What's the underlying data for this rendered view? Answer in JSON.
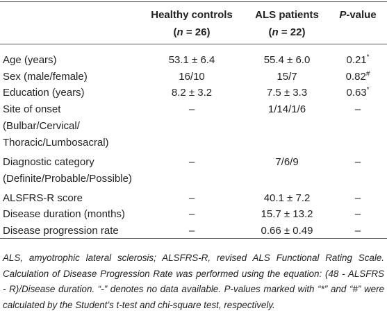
{
  "table": {
    "columns": [
      {
        "title": "Healthy controls",
        "sub": {
          "pre": "(",
          "var": "n",
          "post": " = 26)"
        }
      },
      {
        "title": "ALS patients",
        "sub": {
          "pre": "(",
          "var": "n",
          "post": " = 22)"
        }
      },
      {
        "title": {
          "var": "P",
          "post": "-value"
        }
      }
    ],
    "rows": [
      {
        "label": [
          "Age (years)"
        ],
        "cells": [
          {
            "text": "53.1 ± 6.4"
          },
          {
            "text": "55.4 ± 6.0"
          },
          {
            "text": "0.21",
            "sup": "*"
          }
        ]
      },
      {
        "label": [
          "Sex (male/female)"
        ],
        "cells": [
          {
            "text": "16/10"
          },
          {
            "text": "15/7"
          },
          {
            "text": "0.82",
            "sup": "#"
          }
        ]
      },
      {
        "label": [
          "Education (years)"
        ],
        "cells": [
          {
            "text": "8.2 ± 3.2"
          },
          {
            "text": "7.5 ± 3.3"
          },
          {
            "text": "0.63",
            "sup": "*"
          }
        ]
      },
      {
        "label": [
          "Site of onset",
          "(Bulbar/Cervical/",
          "Thoracic/Lumbosacral)"
        ],
        "cells": [
          {
            "text": "–"
          },
          {
            "text": "1/14/1/6"
          },
          {
            "text": "–"
          }
        ]
      },
      {
        "label": [
          "Diagnostic category",
          "(Definite/Probable/Possible)"
        ],
        "cells": [
          {
            "text": "–"
          },
          {
            "text": "7/6/9"
          },
          {
            "text": "–"
          }
        ]
      },
      {
        "label": [
          "ALSFRS-R score"
        ],
        "cells": [
          {
            "text": "–"
          },
          {
            "text": "40.1 ± 7.2"
          },
          {
            "text": "–"
          }
        ]
      },
      {
        "label": [
          "Disease duration (months)"
        ],
        "cells": [
          {
            "text": "–"
          },
          {
            "text": "15.7 ± 13.2"
          },
          {
            "text": "–"
          }
        ]
      },
      {
        "label": [
          "Disease progression rate"
        ],
        "cells": [
          {
            "text": "–"
          },
          {
            "text": "0.66 ± 0.49"
          },
          {
            "text": "–"
          }
        ]
      }
    ]
  },
  "footnote": [
    "ALS, amyotrophic lateral sclerosis; ALSFRS-R, revised ALS Functional Rating Scale.",
    "Calculation of Disease Progression Rate was performed using the equation: (48 - ALSFRS",
    "- R)/Disease duration. “-” denotes no data available. P-values marked with “*” and “#” were",
    "calculated by the Student’s t-test and chi-square test, respectively."
  ]
}
